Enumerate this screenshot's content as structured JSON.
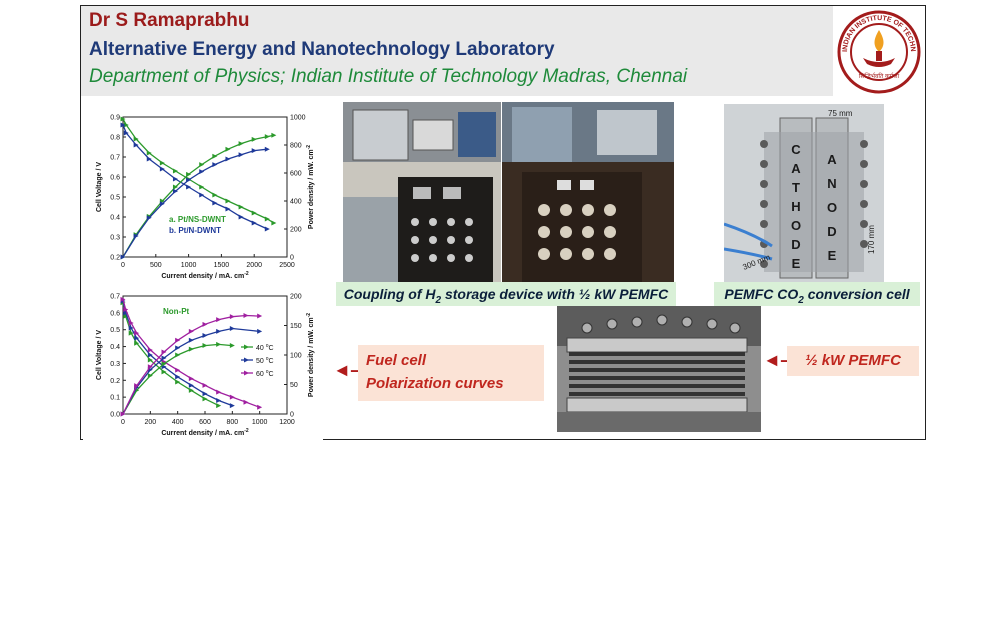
{
  "header": {
    "name": "Dr S Ramaprabhu",
    "lab": "Alternative Energy and Nanotechnology Laboratory",
    "department": "Department of Physics; Indian Institute of Technology Madras, Chennai"
  },
  "logo": {
    "text": "INDIAN INSTITUTE OF TECHNOLOGY MADRAS",
    "motto": "सिद्धिर्भवति कर्मजा"
  },
  "captions": {
    "coupling_pre": "Coupling of H",
    "coupling_sub": "2",
    "coupling_post": " storage device with ½ kW PEMFC",
    "co2_pre": "PEMFC CO",
    "co2_sub": "2",
    "co2_post": " conversion cell",
    "fuel_cell_1": "Fuel cell",
    "fuel_cell_2": "Polarization curves",
    "half_kw": "½ kW PEMFC"
  },
  "cell_labels": {
    "cathode": [
      "C",
      "A",
      "T",
      "H",
      "O",
      "D",
      "E"
    ],
    "anode": [
      "A",
      "N",
      "O",
      "D",
      "E"
    ],
    "width": "75 mm",
    "height": "170 mm",
    "diag": "300 mm"
  },
  "chart_data": [
    {
      "type": "line",
      "xlabel": "Current density / mA. cm",
      "xlabel_sup": "-2",
      "ylabel": "Cell Voltage / V",
      "y2label": "Power density / mW. cm",
      "y2label_sup": "-2",
      "xlim": [
        0,
        2500
      ],
      "ylim": [
        0.2,
        0.9
      ],
      "y2lim": [
        0,
        1000
      ],
      "xticks": [
        "0",
        "500",
        "1000",
        "1500",
        "2000",
        "2500"
      ],
      "yticks": [
        "0.2",
        "0.3",
        "0.4",
        "0.5",
        "0.6",
        "0.7",
        "0.8",
        "0.9"
      ],
      "y2ticks": [
        "0",
        "200",
        "400",
        "600",
        "800",
        "1000"
      ],
      "series": [
        {
          "name": "a. Pt/NS-DWNT",
          "color": "#2c9a2c",
          "axis": "left",
          "x": [
            0,
            50,
            200,
            400,
            600,
            800,
            1000,
            1200,
            1400,
            1600,
            1800,
            2000,
            2200,
            2300
          ],
          "y": [
            0.89,
            0.86,
            0.79,
            0.72,
            0.67,
            0.63,
            0.59,
            0.55,
            0.51,
            0.48,
            0.45,
            0.42,
            0.39,
            0.37
          ]
        },
        {
          "name": "b. Pt/N-DWNT",
          "color": "#1f3a9a",
          "axis": "left",
          "x": [
            0,
            50,
            200,
            400,
            600,
            800,
            1000,
            1200,
            1400,
            1600,
            1800,
            2000,
            2200
          ],
          "y": [
            0.86,
            0.82,
            0.76,
            0.69,
            0.64,
            0.59,
            0.55,
            0.51,
            0.47,
            0.44,
            0.4,
            0.37,
            0.34
          ]
        },
        {
          "name": "a power",
          "color": "#2c9a2c",
          "axis": "right",
          "x": [
            0,
            200,
            400,
            600,
            800,
            1000,
            1200,
            1400,
            1600,
            1800,
            2000,
            2200,
            2300
          ],
          "y": [
            0,
            160,
            290,
            400,
            500,
            590,
            660,
            720,
            770,
            810,
            840,
            860,
            870
          ]
        },
        {
          "name": "b power",
          "color": "#1f3a9a",
          "axis": "right",
          "x": [
            0,
            200,
            400,
            600,
            800,
            1000,
            1200,
            1400,
            1600,
            1800,
            2000,
            2200
          ],
          "y": [
            0,
            150,
            280,
            380,
            470,
            550,
            610,
            660,
            700,
            730,
            760,
            770
          ]
        }
      ],
      "legend": [
        "a. Pt/NS-DWNT",
        "b. Pt/N-DWNT"
      ]
    },
    {
      "type": "line",
      "annotation": "Non-Pt",
      "xlabel": "Current density / mA. cm",
      "xlabel_sup": "-2",
      "ylabel": "Cell Voltage / V",
      "y2label": "Power density / mW. cm",
      "y2label_sup": "-2",
      "xlim": [
        0,
        1200
      ],
      "ylim": [
        0.0,
        0.7
      ],
      "y2lim": [
        0,
        200
      ],
      "xticks": [
        "0",
        "200",
        "400",
        "600",
        "800",
        "1000",
        "1200"
      ],
      "yticks": [
        "0.0",
        "0.1",
        "0.2",
        "0.3",
        "0.4",
        "0.5",
        "0.6",
        "0.7"
      ],
      "y2ticks": [
        "0",
        "50",
        "100",
        "150",
        "200"
      ],
      "series": [
        {
          "name": "40 °C",
          "color": "#2c9a2c",
          "axis": "left",
          "x": [
            0,
            20,
            60,
            100,
            200,
            300,
            400,
            500,
            600,
            700
          ],
          "y": [
            0.66,
            0.58,
            0.48,
            0.42,
            0.32,
            0.25,
            0.19,
            0.14,
            0.09,
            0.05
          ]
        },
        {
          "name": "50 °C",
          "color": "#1f3a9a",
          "axis": "left",
          "x": [
            0,
            20,
            60,
            100,
            200,
            300,
            400,
            500,
            600,
            700,
            800
          ],
          "y": [
            0.67,
            0.6,
            0.51,
            0.45,
            0.35,
            0.28,
            0.22,
            0.17,
            0.12,
            0.08,
            0.05
          ]
        },
        {
          "name": "60 °C",
          "color": "#a020a0",
          "axis": "left",
          "x": [
            0,
            20,
            60,
            100,
            200,
            300,
            400,
            500,
            600,
            700,
            800,
            900,
            1000
          ],
          "y": [
            0.68,
            0.62,
            0.54,
            0.48,
            0.38,
            0.31,
            0.26,
            0.21,
            0.17,
            0.13,
            0.1,
            0.07,
            0.04
          ]
        },
        {
          "name": "40 °C power",
          "color": "#2c9a2c",
          "axis": "right",
          "x": [
            0,
            100,
            200,
            300,
            400,
            500,
            600,
            700,
            800
          ],
          "y": [
            0,
            40,
            65,
            85,
            100,
            110,
            116,
            118,
            116
          ]
        },
        {
          "name": "50 °C power",
          "color": "#1f3a9a",
          "axis": "right",
          "x": [
            0,
            100,
            200,
            300,
            400,
            500,
            600,
            700,
            800,
            1000
          ],
          "y": [
            0,
            45,
            75,
            95,
            112,
            125,
            133,
            140,
            145,
            140
          ]
        },
        {
          "name": "60 °C power",
          "color": "#a020a0",
          "axis": "right",
          "x": [
            0,
            100,
            200,
            300,
            400,
            500,
            600,
            700,
            800,
            900,
            1000
          ],
          "y": [
            0,
            48,
            80,
            105,
            125,
            140,
            152,
            160,
            165,
            167,
            166
          ]
        }
      ],
      "legend": [
        "40 °C",
        "50 °C",
        "60 °C"
      ],
      "legend_degree": "o",
      "legend_parts": [
        [
          "40 ",
          "C"
        ],
        [
          "50 ",
          "C"
        ],
        [
          "60 ",
          "C"
        ]
      ]
    }
  ],
  "colors": {
    "title_red": "#9b1b1b",
    "title_blue": "#1f3a78",
    "title_green": "#1e8a3a",
    "caption_green_bg": "#d9f0d7",
    "caption_peach_bg": "#fbe3d6",
    "arrow_red": "#b11c1c"
  }
}
